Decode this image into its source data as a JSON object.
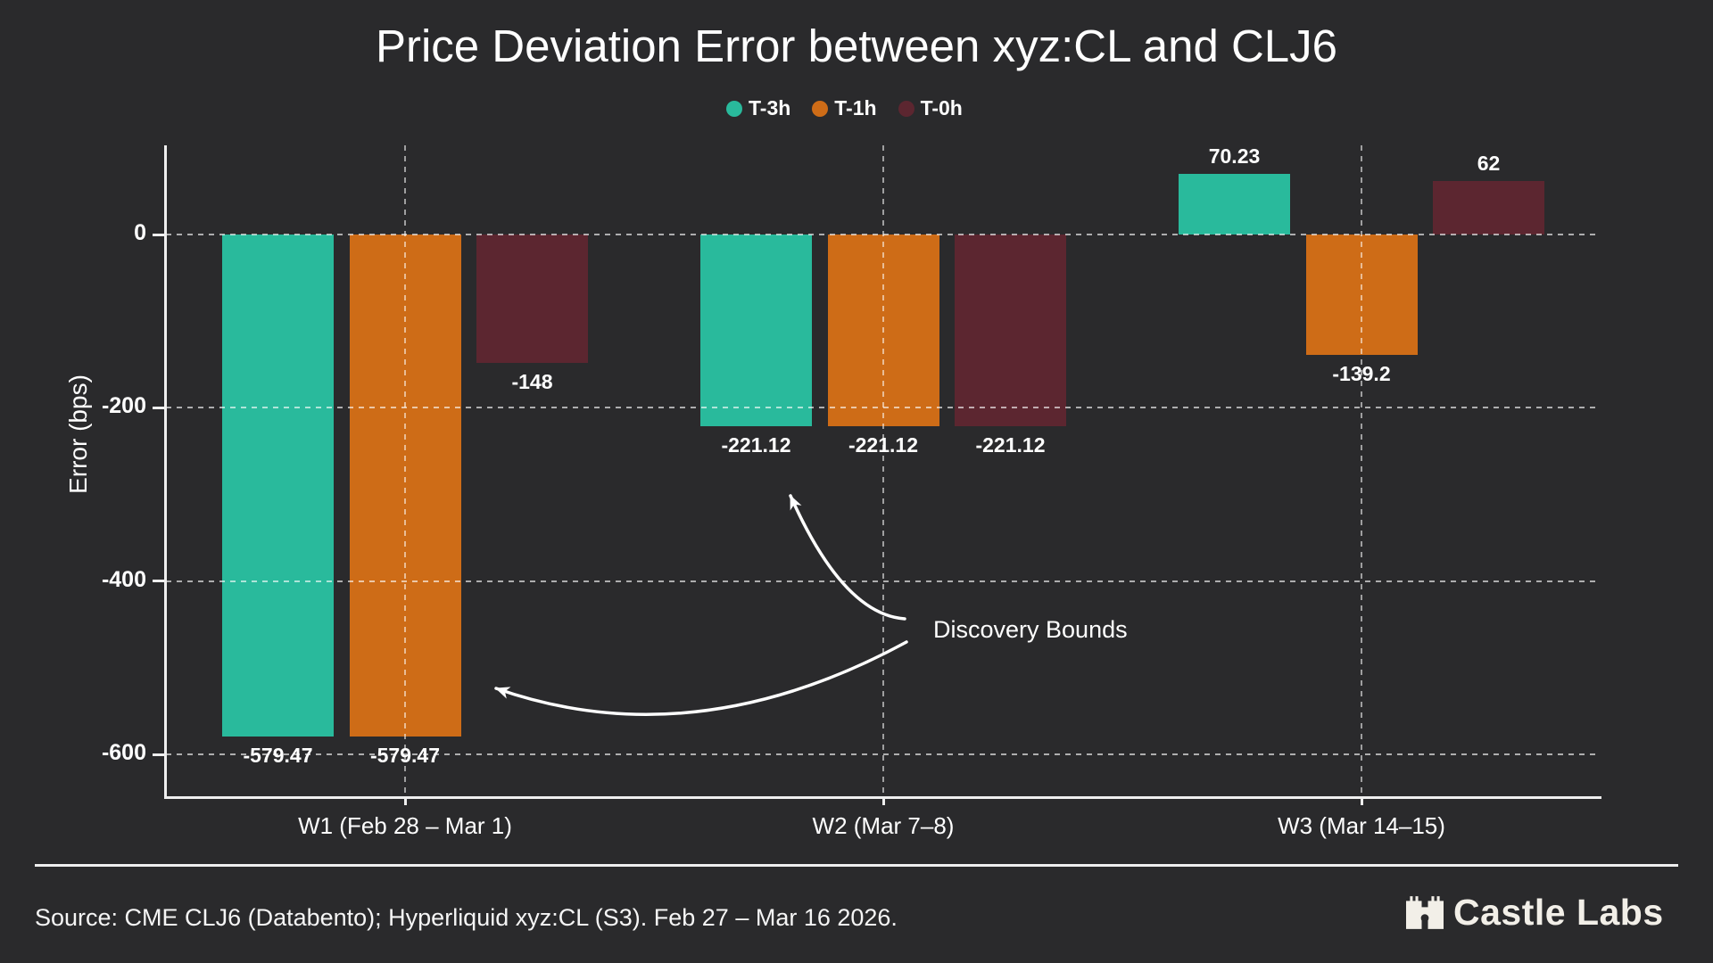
{
  "title": "Price Deviation Error between xyz:CL and CLJ6",
  "legend": [
    "T-3h",
    "T-1h",
    "T-0h"
  ],
  "chart_data": {
    "type": "bar",
    "title": "Price Deviation Error between xyz:CL and CLJ6",
    "categories": [
      "W1 (Feb 28 – Mar 1)",
      "W2 (Mar 7–8)",
      "W3 (Mar 14–15)"
    ],
    "series": [
      {
        "name": "T-3h",
        "color": "#29BA9C",
        "values": [
          -579.47,
          -221.12,
          70.23
        ],
        "labels": [
          "-579.47",
          "-221.12",
          "70.23"
        ]
      },
      {
        "name": "T-1h",
        "color": "#CE6C17",
        "values": [
          -579.47,
          -221.12,
          -139.2
        ],
        "labels": [
          "-579.47",
          "-221.12",
          "-139.2"
        ]
      },
      {
        "name": "T-0h",
        "color": "#5C2630",
        "values": [
          -148,
          -221.12,
          62
        ],
        "labels": [
          "-148",
          "-221.12",
          "62"
        ]
      }
    ],
    "xlabel": "",
    "ylabel": "Error (bps)",
    "yticks": [
      0,
      -200,
      -400,
      -600
    ],
    "ylim": [
      -650,
      100
    ],
    "grid": "dashed, horizontal and vertical",
    "legend_position": "top-center"
  },
  "annotation": {
    "text": "Discovery Bounds"
  },
  "footer": {
    "source": "Source: CME CLJ6 (Databento); Hyperliquid xyz:CL (S3). Feb 27 – Mar 16 2026.",
    "brand": "Castle Labs"
  },
  "colors": {
    "background": "#2A2A2C",
    "axis": "#EFEFEF",
    "text": "#FFFFFF",
    "teal": "#29BA9C",
    "orange": "#CE6C17",
    "maroon": "#5C2630",
    "logo": "#F2EFE8"
  }
}
